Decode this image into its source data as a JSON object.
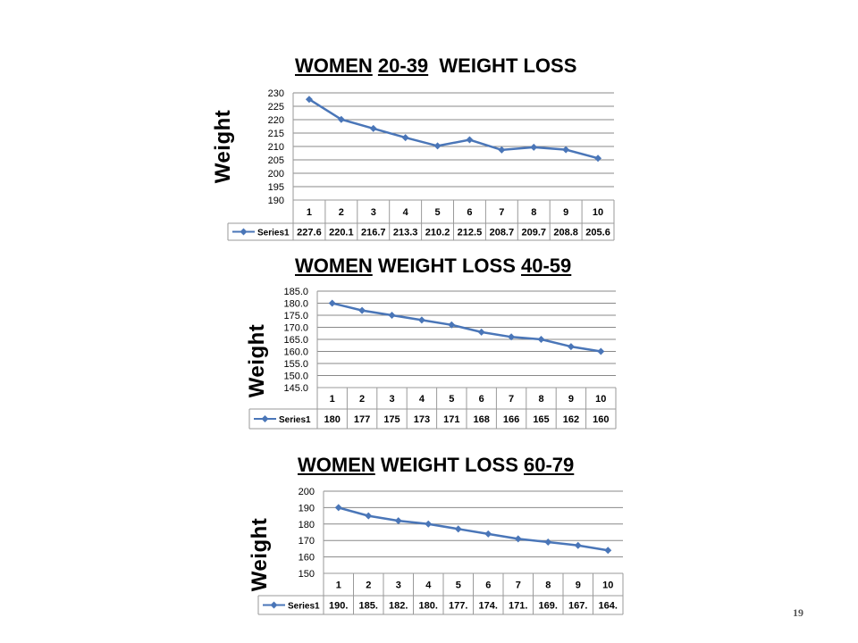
{
  "colors": {
    "series": "#4a76b8",
    "grid": "#888888",
    "border": "#9a9a9a",
    "text": "#000000"
  },
  "page_number": "19",
  "chart_data": [
    {
      "type": "line",
      "title_parts": [
        {
          "text": "WOMEN",
          "underline": true
        },
        {
          "text": " ",
          "underline": false
        },
        {
          "text": "20-39",
          "underline": true
        },
        {
          "text": "  WEIGHT LOSS",
          "underline": false
        }
      ],
      "ylabel": "Weight",
      "xlabel": "",
      "ylim": [
        190,
        230
      ],
      "yticks": [
        190,
        195,
        200,
        205,
        210,
        215,
        220,
        225,
        230
      ],
      "ytick_decimals": 0,
      "categories": [
        "1",
        "2",
        "3",
        "4",
        "5",
        "6",
        "7",
        "8",
        "9",
        "10"
      ],
      "series": [
        {
          "name": "Series1",
          "values": [
            227.6,
            220.1,
            216.7,
            213.3,
            210.2,
            212.5,
            208.7,
            209.7,
            208.8,
            205.6
          ],
          "table_labels": [
            "227.6",
            "220.1",
            "216.7",
            "213.3",
            "210.2",
            "212.5",
            "208.7",
            "209.7",
            "208.8",
            "205.6"
          ]
        }
      ]
    },
    {
      "type": "line",
      "title_parts": [
        {
          "text": "WOMEN",
          "underline": true
        },
        {
          "text": " WEIGHT LOSS ",
          "underline": false
        },
        {
          "text": "40-59",
          "underline": true
        }
      ],
      "ylabel": "Weight",
      "xlabel": "",
      "ylim": [
        145,
        185
      ],
      "yticks": [
        145,
        150,
        155,
        160,
        165,
        170,
        175,
        180,
        185
      ],
      "ytick_decimals": 1,
      "categories": [
        "1",
        "2",
        "3",
        "4",
        "5",
        "6",
        "7",
        "8",
        "9",
        "10"
      ],
      "series": [
        {
          "name": "Series1",
          "values": [
            180,
            177,
            175,
            173,
            171,
            168,
            166,
            165,
            162,
            160
          ],
          "table_labels": [
            "180",
            "177",
            "175",
            "173",
            "171",
            "168",
            "166",
            "165",
            "162",
            "160"
          ]
        }
      ]
    },
    {
      "type": "line",
      "title_parts": [
        {
          "text": "WOMEN",
          "underline": true
        },
        {
          "text": " WEIGHT LOSS ",
          "underline": false
        },
        {
          "text": "60-79",
          "underline": true
        }
      ],
      "ylabel": "Weight",
      "xlabel": "",
      "ylim": [
        150,
        200
      ],
      "yticks": [
        150,
        160,
        170,
        180,
        190,
        200
      ],
      "ytick_decimals": 0,
      "categories": [
        "1",
        "2",
        "3",
        "4",
        "5",
        "6",
        "7",
        "8",
        "9",
        "10"
      ],
      "series": [
        {
          "name": "Series1",
          "values": [
            190,
            185,
            182,
            180,
            177,
            174,
            171,
            169,
            167,
            164
          ],
          "table_labels": [
            "190.",
            "185.",
            "182.",
            "180.",
            "177.",
            "174.",
            "171.",
            "169.",
            "167.",
            "164."
          ]
        }
      ]
    }
  ]
}
